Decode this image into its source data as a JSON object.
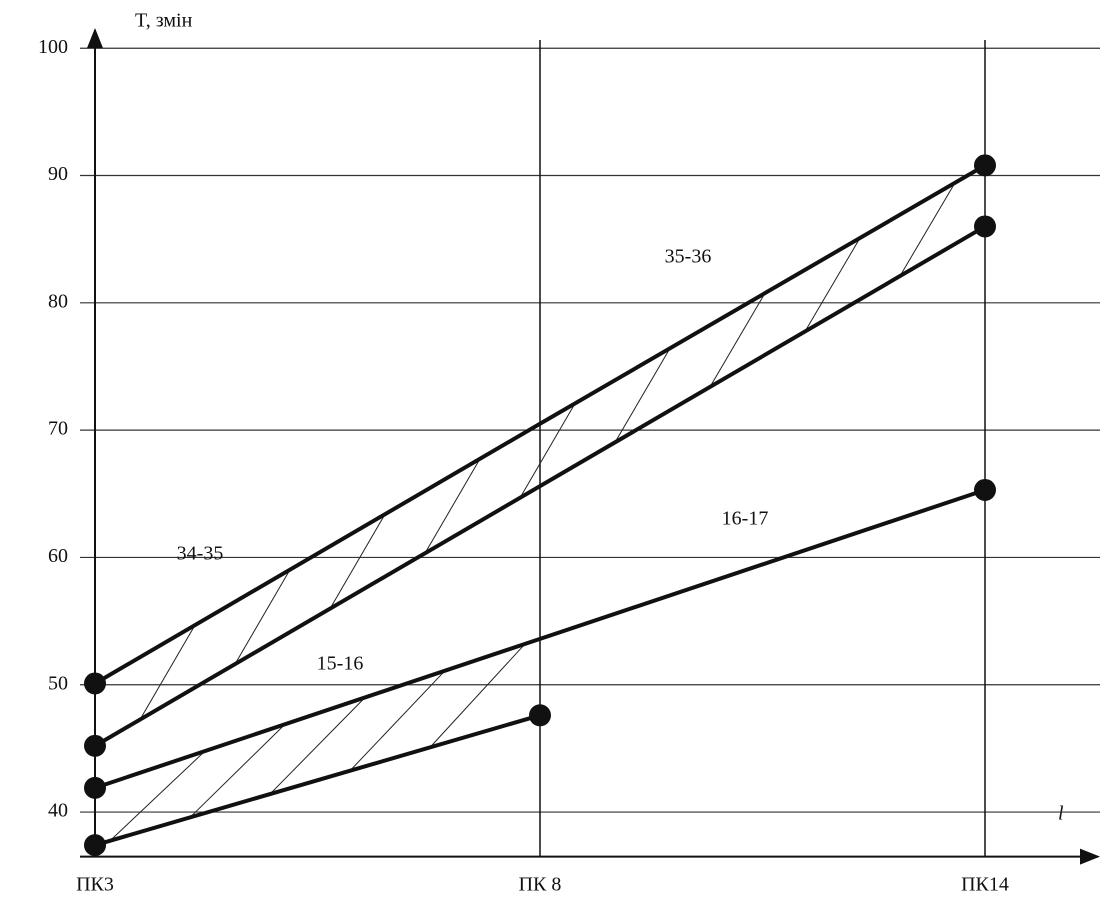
{
  "chart_data": {
    "type": "line",
    "ylabel": "T, змін",
    "xlabel": "l",
    "categories": [
      "ПК3",
      "ПК 8",
      "ПК14"
    ],
    "series": [
      {
        "color": "#111111",
        "values": [
          50.1,
          70.5,
          90.8
        ]
      },
      {
        "color": "#111111",
        "values": [
          45.2,
          65.6,
          86.0
        ]
      },
      {
        "color": "#111111",
        "values": [
          41.9,
          53.6,
          65.3
        ]
      },
      {
        "color": "#111111",
        "values": [
          37.4,
          47.6,
          null
        ]
      }
    ],
    "annotations": [
      "34-35",
      "35-36",
      "15-16",
      "16-17"
    ],
    "ylim": [
      36.5,
      101
    ],
    "yticks": [
      40,
      50,
      60,
      70,
      80,
      90,
      100
    ],
    "grid": true
  }
}
